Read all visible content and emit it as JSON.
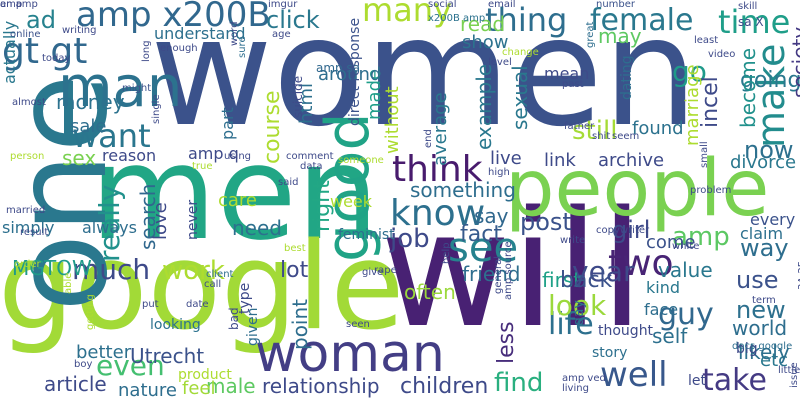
{
  "words": [
    {
      "text": "women",
      "color": "#3b528b"
    },
    {
      "text": "men",
      "color": "#21a685"
    },
    {
      "text": "will",
      "color": "#482173"
    },
    {
      "text": "google",
      "color": "#a2da37"
    },
    {
      "text": "people",
      "color": "#7ad151"
    },
    {
      "text": "one",
      "color": "#2a788e"
    },
    {
      "text": "woman",
      "color": "#433e85"
    },
    {
      "text": "man",
      "color": "#2c728e"
    },
    {
      "text": "think",
      "color": "#481b6d"
    },
    {
      "text": "know",
      "color": "#2d708e"
    },
    {
      "text": "good",
      "color": "#20a386"
    },
    {
      "text": "see",
      "color": "#26828e"
    },
    {
      "text": "make",
      "color": "#228c8d"
    },
    {
      "text": "time",
      "color": "#1f9e89"
    },
    {
      "text": "want",
      "color": "#2a768e"
    },
    {
      "text": "amp x200B",
      "color": "#31688e"
    },
    {
      "text": "many",
      "color": "#addc30"
    },
    {
      "text": "gt gt",
      "color": "#31688e"
    },
    {
      "text": "thing",
      "color": "#2e6e8e"
    },
    {
      "text": "female",
      "color": "#2a788e"
    },
    {
      "text": "even",
      "color": "#44bf70"
    },
    {
      "text": "well",
      "color": "#38588c"
    },
    {
      "text": "find",
      "color": "#29af7f"
    },
    {
      "text": "take",
      "color": "#443a83"
    },
    {
      "text": "two",
      "color": "#482475"
    },
    {
      "text": "guy",
      "color": "#31688e"
    },
    {
      "text": "life",
      "color": "#2d708e"
    },
    {
      "text": "look",
      "color": "#9bd93c"
    },
    {
      "text": "year",
      "color": "#3e4a89"
    },
    {
      "text": "post",
      "color": "#3b528b"
    },
    {
      "text": "really",
      "color": "#21918c"
    },
    {
      "text": "work",
      "color": "#addc30"
    },
    {
      "text": "much",
      "color": "#3e4a89"
    },
    {
      "text": "still",
      "color": "#a5db36"
    },
    {
      "text": "go",
      "color": "#1f9a8a"
    },
    {
      "text": "money",
      "color": "#2c728e"
    },
    {
      "text": "amp",
      "color": "#5cc863"
    },
    {
      "text": "new",
      "color": "#2d708e"
    },
    {
      "text": "use",
      "color": "#3b528b"
    },
    {
      "text": "way",
      "color": "#2e6e8e"
    },
    {
      "text": "girl",
      "color": "#3e4a89"
    },
    {
      "text": "job",
      "color": "#3e4a89"
    },
    {
      "text": "fact",
      "color": "#375b8d"
    },
    {
      "text": "say",
      "color": "#31688e"
    },
    {
      "text": "first",
      "color": "#1fa188"
    },
    {
      "text": "back",
      "color": "#3b528b"
    },
    {
      "text": "friend",
      "color": "#2e6e8e"
    },
    {
      "text": "lot",
      "color": "#3e4a89"
    },
    {
      "text": "often",
      "color": "#9bd93c"
    },
    {
      "text": "need",
      "color": "#2d708e"
    },
    {
      "text": "right",
      "color": "#22a785"
    },
    {
      "text": "click",
      "color": "#2a788e"
    },
    {
      "text": "ad",
      "color": "#26828e"
    },
    {
      "text": "now",
      "color": "#2d708e"
    },
    {
      "text": "going",
      "color": "#2a788e"
    },
    {
      "text": "may",
      "color": "#5ec962"
    },
    {
      "text": "become",
      "color": "#21918c"
    },
    {
      "text": "society",
      "color": "#443983"
    },
    {
      "text": "incel",
      "color": "#3e4a89"
    },
    {
      "text": "MGTOW",
      "color": "#1f9a8a"
    },
    {
      "text": "article",
      "color": "#3e4a89"
    },
    {
      "text": "relationship",
      "color": "#3e4a89"
    },
    {
      "text": "children",
      "color": "#3e4a89"
    },
    {
      "text": "male",
      "color": "#5ec962"
    },
    {
      "text": "feel",
      "color": "#a2da37"
    },
    {
      "text": "nature",
      "color": "#2e6e8e"
    },
    {
      "text": "better",
      "color": "#2d708e"
    },
    {
      "text": "Utrecht",
      "color": "#3b528b"
    },
    {
      "text": "etc",
      "color": "#2a788e"
    },
    {
      "text": "likely",
      "color": "#2d708e"
    },
    {
      "text": "world",
      "color": "#2e6e8e"
    },
    {
      "text": "value",
      "color": "#2a788e"
    },
    {
      "text": "kind",
      "color": "#2a788e"
    },
    {
      "text": "face",
      "color": "#2e6e8e"
    },
    {
      "text": "self",
      "color": "#2d708e"
    },
    {
      "text": "less",
      "color": "#472d7b"
    },
    {
      "text": "come",
      "color": "#3b528b"
    },
    {
      "text": "search",
      "color": "#31688e"
    },
    {
      "text": "love",
      "color": "#3e4a89"
    },
    {
      "text": "course",
      "color": "#addc30"
    },
    {
      "text": "sex",
      "color": "#7ad151"
    },
    {
      "text": "sale",
      "color": "#2e6e8e"
    },
    {
      "text": "example",
      "color": "#2a788e"
    },
    {
      "text": "sexual",
      "color": "#2a788e"
    },
    {
      "text": "average",
      "color": "#2a788e"
    },
    {
      "text": "without",
      "color": "#addc30"
    },
    {
      "text": "something",
      "color": "#2e6e8e"
    },
    {
      "text": "html",
      "color": "#2d708e"
    },
    {
      "text": "live",
      "color": "#3e4a89"
    },
    {
      "text": "archive",
      "color": "#3e4a89"
    },
    {
      "text": "link",
      "color": "#3e4a89"
    },
    {
      "text": "read",
      "color": "#7ad151"
    },
    {
      "text": "show",
      "color": "#2c728e"
    },
    {
      "text": "made",
      "color": "#1f9e89"
    },
    {
      "text": "around",
      "color": "#2e6e8e"
    },
    {
      "text": "marriage",
      "color": "#addc30"
    },
    {
      "text": "divorce",
      "color": "#2a788e"
    },
    {
      "text": "every",
      "color": "#3b528b"
    },
    {
      "text": "claim",
      "color": "#2d708e"
    },
    {
      "text": "feminist",
      "color": "#2e6e8e"
    },
    {
      "text": "week",
      "color": "#addc30"
    },
    {
      "text": "care",
      "color": "#addc30"
    },
    {
      "text": "simply",
      "color": "#2d708e"
    },
    {
      "text": "always",
      "color": "#2e6e8e"
    },
    {
      "text": "reason",
      "color": "#3e4a89"
    },
    {
      "text": "never",
      "color": "#3e4a89"
    },
    {
      "text": "amp q",
      "color": "#3e4a89"
    },
    {
      "text": "part",
      "color": "#2e6e8e"
    },
    {
      "text": "dating",
      "color": "#2e6e8e"
    },
    {
      "text": "mean",
      "color": "#3e4a89"
    },
    {
      "text": "found",
      "color": "#2c728e"
    },
    {
      "text": "point",
      "color": "#2e6e8e"
    },
    {
      "text": "actually",
      "color": "#2a788e"
    },
    {
      "text": "day",
      "color": "#2c728e"
    },
    {
      "text": "story",
      "color": "#2d708e"
    },
    {
      "text": "thought",
      "color": "#3e4a89"
    },
    {
      "text": "big",
      "color": "#3e4a89"
    },
    {
      "text": "let",
      "color": "#3e4a89"
    },
    {
      "text": "type",
      "color": "#3e4a89"
    },
    {
      "text": "product",
      "color": "#addc30"
    },
    {
      "text": "given",
      "color": "#2e6e8e"
    },
    {
      "text": "looking",
      "color": "#2c728e"
    },
    {
      "text": "bad",
      "color": "#3e4a89"
    },
    {
      "text": "understand",
      "color": "#2d708e"
    },
    {
      "text": "direct response",
      "color": "#3b528b"
    },
    {
      "text": "suicide",
      "color": "#3e4a89"
    },
    {
      "text": "amp sa",
      "color": "#31688e"
    },
    {
      "text": "skill",
      "color": "#3e4a89"
    },
    {
      "text": "sa X",
      "color": "#3e4a89"
    },
    {
      "text": "number",
      "color": "#3b528b"
    },
    {
      "text": "email",
      "color": "#3e4a89"
    },
    {
      "text": "social",
      "color": "#3e4a89"
    },
    {
      "text": "imgur",
      "color": "#3e4a89"
    },
    {
      "text": "x200B amp",
      "color": "#2c728e"
    },
    {
      "text": "writing",
      "color": "#3e4a89"
    },
    {
      "text": "online",
      "color": "#3b528b"
    },
    {
      "text": "today",
      "color": "#3e4a89"
    },
    {
      "text": "might",
      "color": "#3b528b"
    },
    {
      "text": "almost",
      "color": "#3e4a89"
    },
    {
      "text": "enough",
      "color": "#3e4a89"
    },
    {
      "text": "long",
      "color": "#3e4a89"
    },
    {
      "text": "single",
      "color": "#3e4a89"
    },
    {
      "text": "least",
      "color": "#3e4a89"
    },
    {
      "text": "video",
      "color": "#3e4a89"
    },
    {
      "text": "level",
      "color": "#3e4a89"
    },
    {
      "text": "past",
      "color": "#3e4a89"
    },
    {
      "text": "father",
      "color": "#3e4a89"
    },
    {
      "text": "seem",
      "color": "#3e4a89"
    },
    {
      "text": "shit",
      "color": "#3e4a89"
    },
    {
      "text": "great",
      "color": "#2e6e8e"
    },
    {
      "text": "change",
      "color": "#addc30"
    },
    {
      "text": "person",
      "color": "#addc30"
    },
    {
      "text": "married",
      "color": "#3e4a89"
    },
    {
      "text": "result",
      "color": "#3e4a89"
    },
    {
      "text": "order",
      "color": "#addc30"
    },
    {
      "text": "able",
      "color": "#addc30"
    },
    {
      "text": "getting",
      "color": "#addc30"
    },
    {
      "text": "boy",
      "color": "#3e4a89"
    },
    {
      "text": "put",
      "color": "#3e4a89"
    },
    {
      "text": "client",
      "color": "#2e6e8e"
    },
    {
      "text": "call",
      "color": "#3e4a89"
    },
    {
      "text": "date",
      "color": "#3e4a89"
    },
    {
      "text": "best",
      "color": "#addc30"
    },
    {
      "text": "give",
      "color": "#3e4a89"
    },
    {
      "text": "rape",
      "color": "#3e4a89"
    },
    {
      "text": "help",
      "color": "#3e4a89"
    },
    {
      "text": "seen",
      "color": "#3e4a89"
    },
    {
      "text": "general",
      "color": "#3e4a89"
    },
    {
      "text": "amp source",
      "color": "#3e4a89"
    },
    {
      "text": "amp ved",
      "color": "#3e4a89"
    },
    {
      "text": "living",
      "color": "#3e4a89"
    },
    {
      "text": "little",
      "color": "#3e4a89"
    },
    {
      "text": "issue",
      "color": "#3e4a89"
    },
    {
      "text": "term",
      "color": "#3e4a89"
    },
    {
      "text": "3A 2F",
      "color": "#3e4a89"
    },
    {
      "text": "docs google",
      "color": "#2e6e8e"
    },
    {
      "text": "white",
      "color": "#3e4a89"
    },
    {
      "text": "problem",
      "color": "#3e4a89"
    },
    {
      "text": "small",
      "color": "#3e4a89"
    },
    {
      "text": "end",
      "color": "#3e4a89"
    },
    {
      "text": "write",
      "color": "#3e4a89"
    },
    {
      "text": "copywriter",
      "color": "#3e4a89"
    },
    {
      "text": "high",
      "color": "#3e4a89"
    },
    {
      "text": "someone",
      "color": "#addc30"
    },
    {
      "text": "data",
      "color": "#3e4a89"
    },
    {
      "text": "comment",
      "color": "#3e4a89"
    },
    {
      "text": "using",
      "color": "#3e4a89"
    },
    {
      "text": "true",
      "color": "#addc30"
    },
    {
      "text": "said",
      "color": "#3e4a89"
    },
    {
      "text": "sure",
      "color": "#2e6e8e"
    },
    {
      "text": "word",
      "color": "#3e4a89"
    },
    {
      "text": "age",
      "color": "#3e4a89"
    },
    {
      "text": "en amp",
      "color": "#3e4a89"
    },
    {
      "text": "amp",
      "color": "#3e4a89"
    }
  ]
}
